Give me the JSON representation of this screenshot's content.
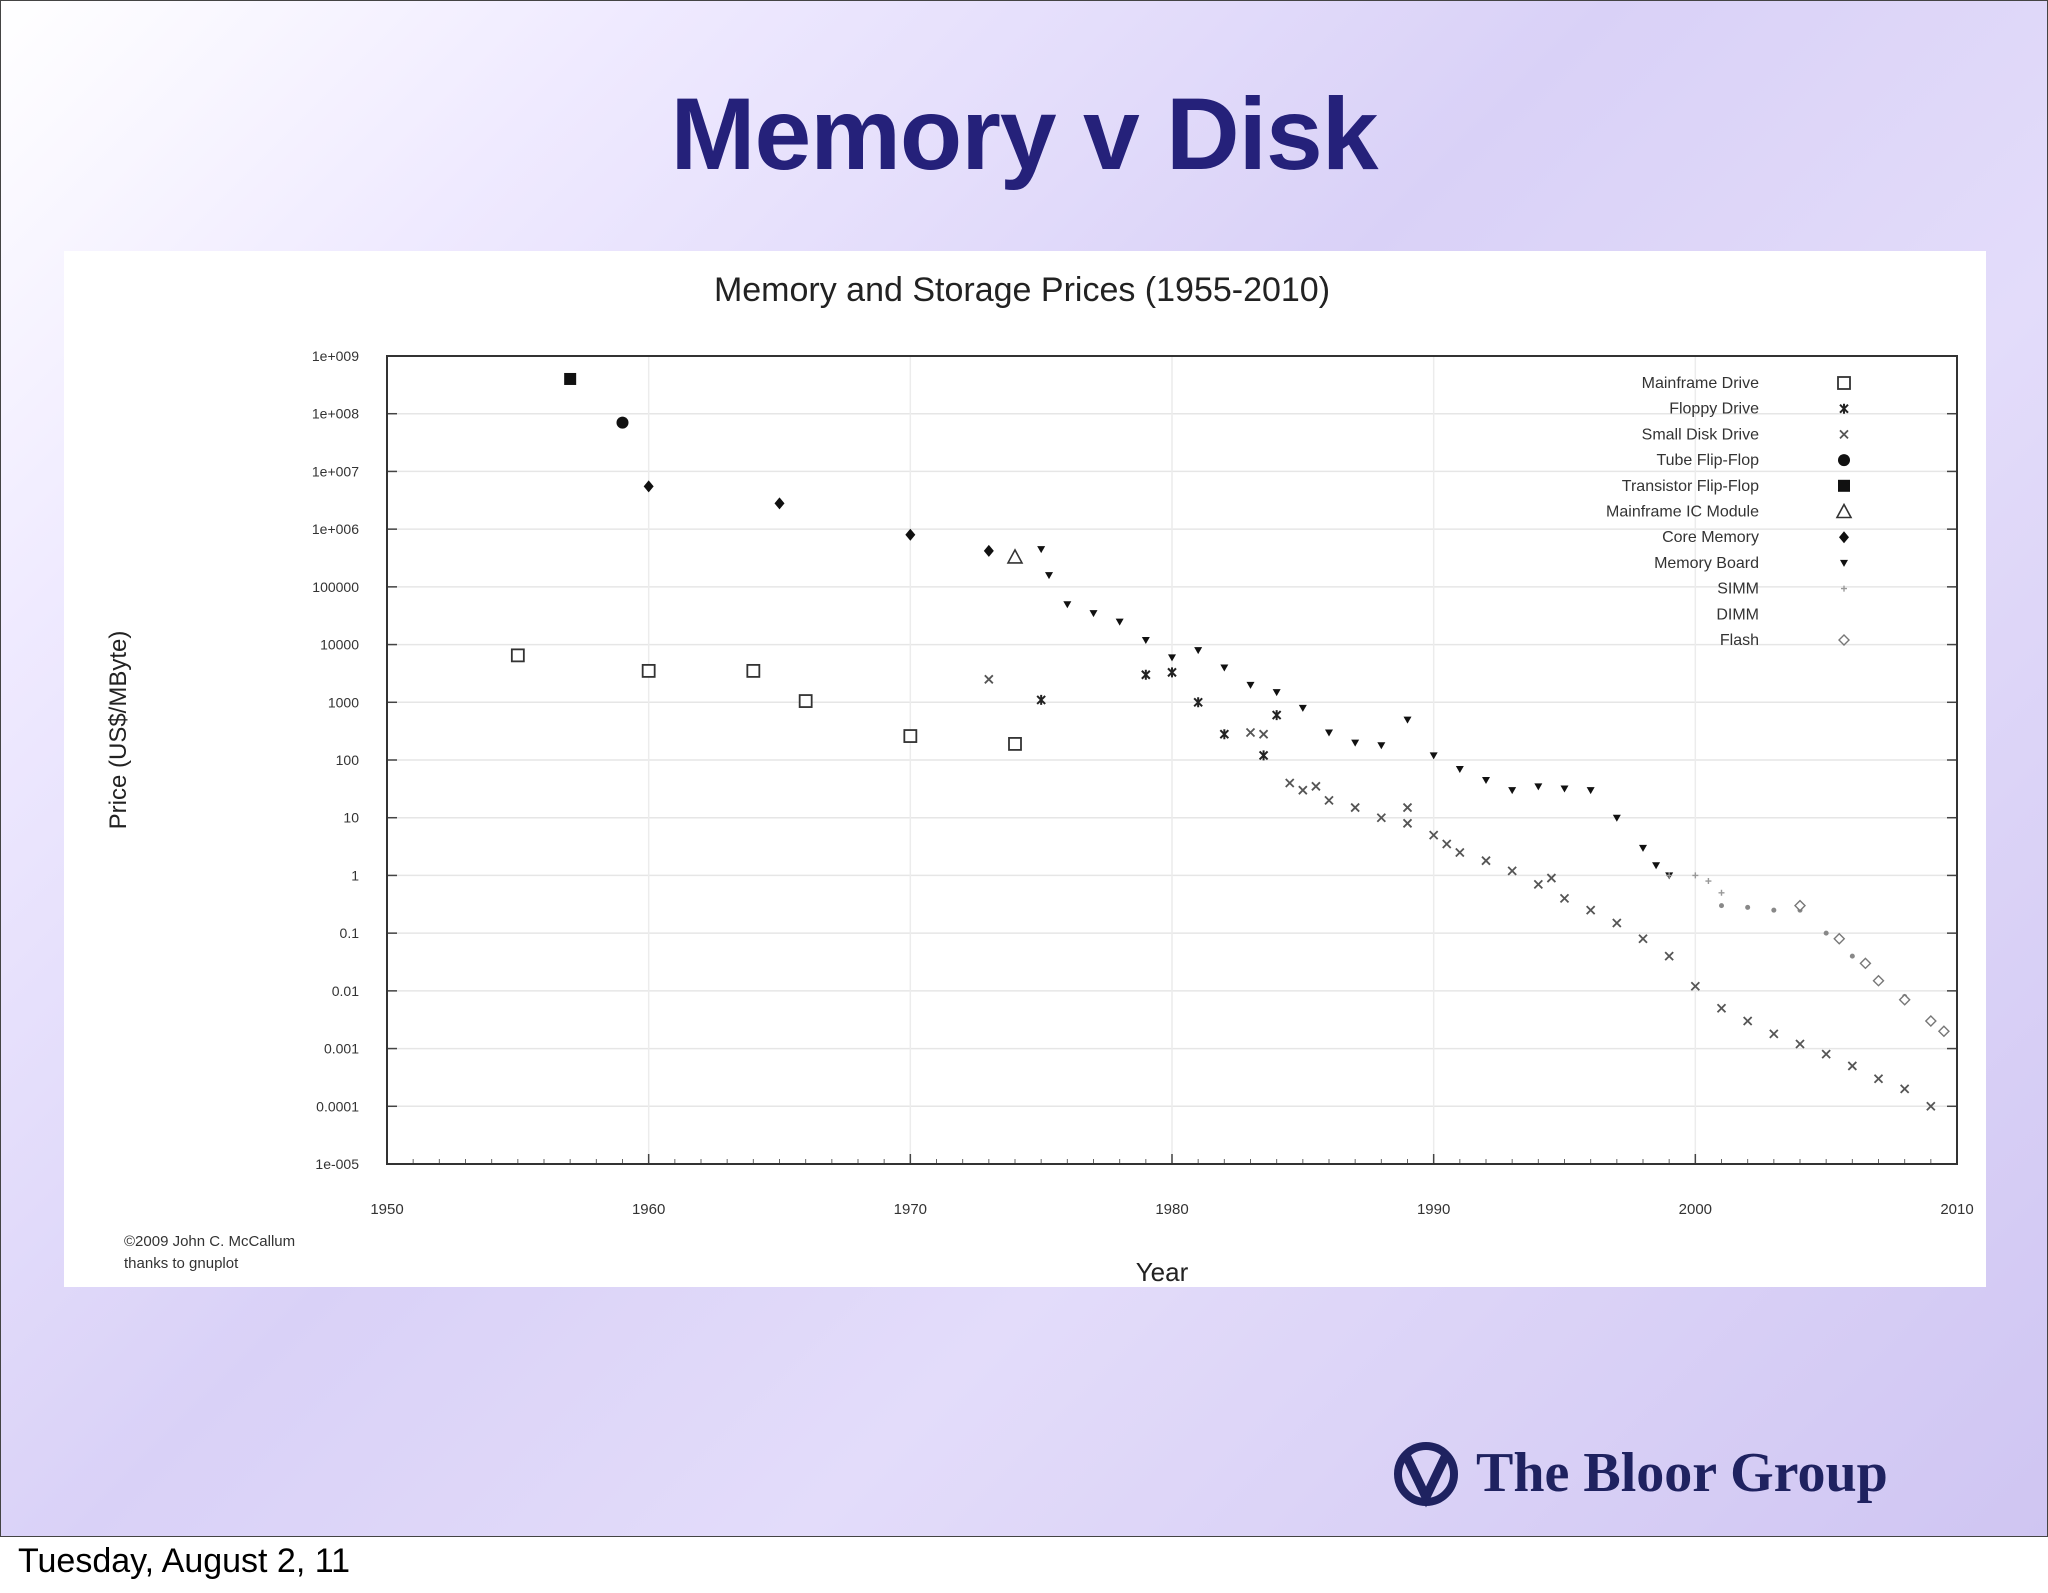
{
  "slide": {
    "title": "Memory v Disk",
    "footer_date": "Tuesday, August 2, 11",
    "logo_text": "The Bloor Group"
  },
  "chart_data": {
    "type": "scatter",
    "title": "Memory and Storage Prices (1955-2010)",
    "xlabel": "Year",
    "ylabel": "Price (US$/MByte)",
    "xlim": [
      1950,
      2010
    ],
    "ylim": [
      1e-05,
      1000000000.0
    ],
    "yscale": "log",
    "grid": true,
    "legend_position": "top-right",
    "x_ticks": [
      "1950",
      "1960",
      "1970",
      "1980",
      "1990",
      "2000",
      "2010"
    ],
    "y_ticks": [
      "1e+009",
      "1e+008",
      "1e+007",
      "1e+006",
      "100000",
      "10000",
      "1000",
      "100",
      "10",
      "1",
      "0.1",
      "0.01",
      "0.001",
      "0.0001",
      "1e-005"
    ],
    "credit": [
      "©2009 John C. McCallum",
      "thanks to gnuplot"
    ],
    "series": [
      {
        "name": "Mainframe Drive",
        "marker": "open-square",
        "points": [
          [
            1955,
            6500
          ],
          [
            1960,
            3500
          ],
          [
            1964,
            3500
          ],
          [
            1966,
            1050
          ],
          [
            1970,
            260
          ],
          [
            1974,
            190
          ]
        ]
      },
      {
        "name": "Floppy Drive",
        "marker": "star",
        "points": [
          [
            1975,
            1100
          ],
          [
            1979,
            3000
          ],
          [
            1980,
            3300
          ],
          [
            1981,
            1000
          ],
          [
            1982,
            280
          ],
          [
            1983.5,
            120
          ],
          [
            1984,
            600
          ]
        ]
      },
      {
        "name": "Small Disk Drive",
        "marker": "cross",
        "points": [
          [
            1973,
            2500
          ],
          [
            1983,
            300
          ],
          [
            1983.5,
            280
          ],
          [
            1984.5,
            40
          ],
          [
            1985,
            30
          ],
          [
            1985.5,
            35
          ],
          [
            1986,
            20
          ],
          [
            1987,
            15
          ],
          [
            1988,
            10
          ],
          [
            1989,
            15
          ],
          [
            1989,
            8
          ],
          [
            1990,
            5
          ],
          [
            1990.5,
            3.5
          ],
          [
            1991,
            2.5
          ],
          [
            1992,
            1.8
          ],
          [
            1993,
            1.2
          ],
          [
            1994,
            0.7
          ],
          [
            1994.5,
            0.9
          ],
          [
            1995,
            0.4
          ],
          [
            1996,
            0.25
          ],
          [
            1997,
            0.15
          ],
          [
            1998,
            0.08
          ],
          [
            1999,
            0.04
          ],
          [
            2000,
            0.012
          ],
          [
            2001,
            0.005
          ],
          [
            2002,
            0.003
          ],
          [
            2003,
            0.0018
          ],
          [
            2004,
            0.0012
          ],
          [
            2005,
            0.0008
          ],
          [
            2006,
            0.0005
          ],
          [
            2007,
            0.0003
          ],
          [
            2008,
            0.0002
          ],
          [
            2009,
            0.0001
          ]
        ]
      },
      {
        "name": "Tube Flip-Flop",
        "marker": "filled-circle",
        "points": [
          [
            1959,
            70000000
          ]
        ]
      },
      {
        "name": "Transistor Flip-Flop",
        "marker": "filled-square",
        "points": [
          [
            1957,
            400000000
          ]
        ]
      },
      {
        "name": "Mainframe IC Module",
        "marker": "open-triangle",
        "points": [
          [
            1974,
            330000
          ]
        ]
      },
      {
        "name": "Core Memory",
        "marker": "filled-diamond",
        "points": [
          [
            1960,
            5500000
          ],
          [
            1965,
            2800000
          ],
          [
            1970,
            800000
          ],
          [
            1973,
            420000
          ]
        ]
      },
      {
        "name": "Memory Board",
        "marker": "filled-triangle-down",
        "points": [
          [
            1975,
            450000
          ],
          [
            1975.3,
            160000
          ],
          [
            1976,
            50000
          ],
          [
            1977,
            35000
          ],
          [
            1978,
            25000
          ],
          [
            1979,
            12000
          ],
          [
            1980,
            6000
          ],
          [
            1981,
            8000
          ],
          [
            1982,
            4000
          ],
          [
            1983,
            2000
          ],
          [
            1984,
            1500
          ],
          [
            1985,
            800
          ],
          [
            1986,
            300
          ],
          [
            1987,
            200
          ],
          [
            1988,
            180
          ],
          [
            1989,
            500
          ],
          [
            1990,
            120
          ],
          [
            1991,
            70
          ],
          [
            1992,
            45
          ],
          [
            1993,
            30
          ],
          [
            1994,
            35
          ],
          [
            1995,
            32
          ],
          [
            1996,
            30
          ],
          [
            1997,
            10
          ],
          [
            1998,
            3
          ],
          [
            1998.5,
            1.5
          ],
          [
            1999,
            1.0
          ]
        ]
      },
      {
        "name": "SIMM",
        "marker": "small-plus",
        "points": [
          [
            1999,
            1.0
          ],
          [
            2000,
            1.0
          ],
          [
            2000.5,
            0.8
          ],
          [
            2001,
            0.5
          ]
        ]
      },
      {
        "name": "DIMM",
        "marker": "none",
        "points": [
          [
            2001,
            0.3
          ],
          [
            2002,
            0.28
          ],
          [
            2003,
            0.25
          ],
          [
            2004,
            0.25
          ],
          [
            2005,
            0.1
          ],
          [
            2006,
            0.04
          ],
          [
            2007,
            0.015
          ],
          [
            2008,
            0.008
          ],
          [
            2009,
            0.003
          ],
          [
            2009.5,
            0.002
          ]
        ]
      },
      {
        "name": "Flash",
        "marker": "open-diamond",
        "points": [
          [
            2004,
            0.3
          ],
          [
            2005.5,
            0.08
          ],
          [
            2006.5,
            0.03
          ],
          [
            2007,
            0.015
          ],
          [
            2008,
            0.007
          ],
          [
            2009,
            0.003
          ],
          [
            2009.5,
            0.002
          ]
        ]
      }
    ]
  }
}
